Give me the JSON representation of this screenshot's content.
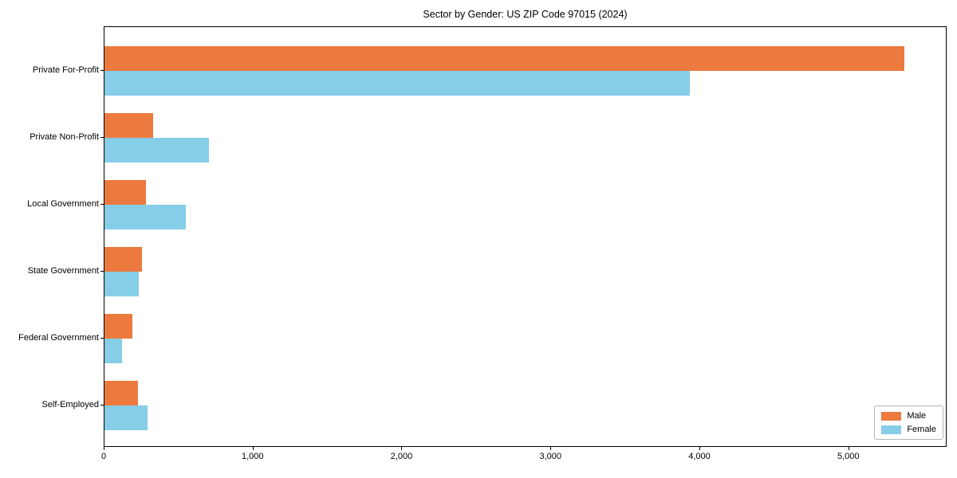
{
  "chart_data": {
    "type": "bar",
    "orientation": "horizontal",
    "title": "Sector by Gender: US ZIP Code 97015 (2024)",
    "categories": [
      "Private For-Profit",
      "Private Non-Profit",
      "Local Government",
      "State Government",
      "Federal Government",
      "Self-Employed"
    ],
    "series": [
      {
        "name": "Male",
        "color": "#ec7a3e",
        "values": [
          5380,
          325,
          280,
          250,
          190,
          225
        ]
      },
      {
        "name": "Female",
        "color": "#86cde8",
        "values": [
          3940,
          705,
          545,
          230,
          120,
          290
        ]
      }
    ],
    "xlabel": "",
    "ylabel": "",
    "xlim": [
      0,
      5660
    ],
    "xticks": [
      0,
      1000,
      2000,
      3000,
      4000,
      5000
    ],
    "xtick_labels": [
      "0",
      "1,000",
      "2,000",
      "3,000",
      "4,000",
      "5,000"
    ],
    "legend_position": "lower right",
    "grid": false,
    "bar_edge": "none"
  }
}
